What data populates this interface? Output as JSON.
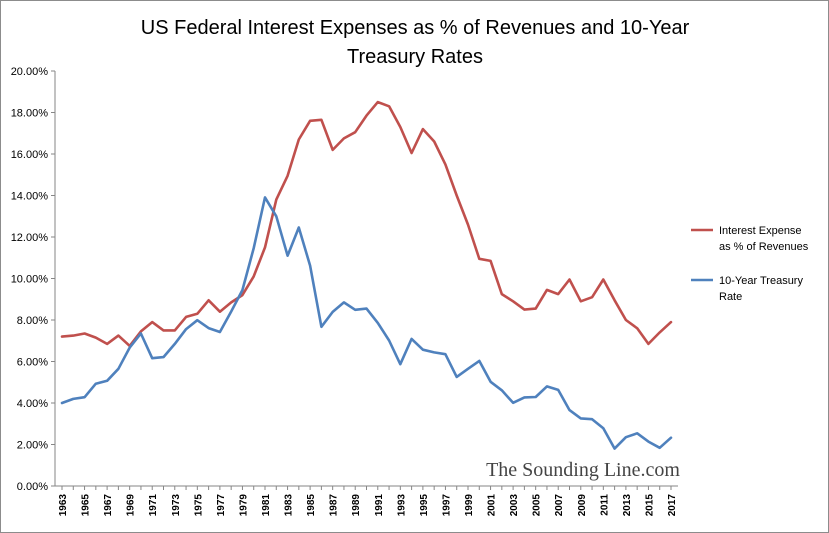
{
  "chart_data": {
    "type": "line",
    "title_lines": [
      "US Federal Interest Expenses as % of Revenues and 10-Year",
      "Treasury Rates"
    ],
    "watermark": "The Sounding Line.com",
    "ylim": [
      0,
      20
    ],
    "y_ticks": [
      {
        "value": 0,
        "label": "0.00%"
      },
      {
        "value": 2,
        "label": "2.00%"
      },
      {
        "value": 4,
        "label": "4.00%"
      },
      {
        "value": 6,
        "label": "6.00%"
      },
      {
        "value": 8,
        "label": "8.00%"
      },
      {
        "value": 10,
        "label": "10.00%"
      },
      {
        "value": 12,
        "label": "12.00%"
      },
      {
        "value": 14,
        "label": "14.00%"
      },
      {
        "value": 16,
        "label": "16.00%"
      },
      {
        "value": 18,
        "label": "18.00%"
      },
      {
        "value": 20,
        "label": "20.00%"
      }
    ],
    "x_tick_labels": [
      "1963",
      "1965",
      "1967",
      "1969",
      "1971",
      "1973",
      "1975",
      "1977",
      "1979",
      "1981",
      "1983",
      "1985",
      "1987",
      "1989",
      "1991",
      "1993",
      "1995",
      "1997",
      "1999",
      "2001",
      "2003",
      "2005",
      "2007",
      "2009",
      "2011",
      "2013",
      "2015",
      "2017"
    ],
    "x": [
      1963,
      1964,
      1965,
      1966,
      1967,
      1968,
      1969,
      1970,
      1971,
      1972,
      1973,
      1974,
      1975,
      1976,
      1977,
      1978,
      1979,
      1980,
      1981,
      1982,
      1983,
      1984,
      1985,
      1986,
      1987,
      1988,
      1989,
      1990,
      1991,
      1992,
      1993,
      1994,
      1995,
      1996,
      1997,
      1998,
      1999,
      2000,
      2001,
      2002,
      2003,
      2004,
      2005,
      2006,
      2007,
      2008,
      2009,
      2010,
      2011,
      2012,
      2013,
      2014,
      2015,
      2016,
      2017
    ],
    "grid": false,
    "legend_position": "right",
    "series": [
      {
        "legend_lines": [
          "Interest Expense",
          "as % of Revenues"
        ],
        "color": "#c0504d",
        "values": [
          7.2,
          7.25,
          7.35,
          7.15,
          6.85,
          7.25,
          6.75,
          7.45,
          7.9,
          7.5,
          7.5,
          8.15,
          8.3,
          8.95,
          8.4,
          8.85,
          9.2,
          10.1,
          11.5,
          13.8,
          14.95,
          16.7,
          17.6,
          17.65,
          16.2,
          16.75,
          17.05,
          17.85,
          18.5,
          18.3,
          17.3,
          16.05,
          17.2,
          16.6,
          15.5,
          14.0,
          12.6,
          10.95,
          10.85,
          9.25,
          8.9,
          8.5,
          8.55,
          9.45,
          9.25,
          9.95,
          8.9,
          9.1,
          9.95,
          8.95,
          8.0,
          7.6,
          6.85,
          7.4,
          7.9
        ]
      },
      {
        "legend_lines": [
          "10-Year Treasury",
          "Rate"
        ],
        "color": "#4f81bd",
        "values": [
          4.0,
          4.2,
          4.28,
          4.93,
          5.07,
          5.65,
          6.67,
          7.35,
          6.16,
          6.21,
          6.85,
          7.56,
          7.99,
          7.61,
          7.42,
          8.41,
          9.44,
          11.46,
          13.91,
          13.0,
          11.1,
          12.46,
          10.62,
          7.67,
          8.39,
          8.85,
          8.49,
          8.55,
          7.86,
          7.01,
          5.87,
          7.09,
          6.57,
          6.44,
          6.35,
          5.26,
          5.65,
          6.03,
          5.02,
          4.61,
          4.01,
          4.27,
          4.29,
          4.8,
          4.63,
          3.66,
          3.26,
          3.22,
          2.78,
          1.8,
          2.35,
          2.54,
          2.14,
          1.84,
          2.33
        ]
      }
    ]
  }
}
